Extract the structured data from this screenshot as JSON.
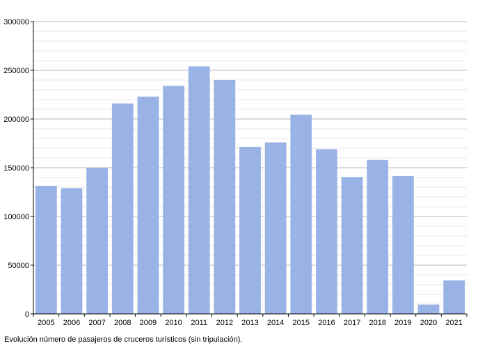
{
  "chart_data": {
    "type": "bar",
    "categories": [
      "2005",
      "2006",
      "2007",
      "2008",
      "2009",
      "2010",
      "2011",
      "2012",
      "2013",
      "2014",
      "2015",
      "2016",
      "2017",
      "2018",
      "2019",
      "2020",
      "2021"
    ],
    "series": [
      {
        "values": [
          131500,
          129000,
          150000,
          216000,
          223000,
          234000,
          254000,
          240000,
          171500,
          176000,
          204500,
          169000,
          140500,
          158000,
          141500,
          9500,
          34500
        ]
      }
    ],
    "ylim": [
      0,
      300000
    ],
    "yticks": [
      "0",
      "50000",
      "100000",
      "150000",
      "200000",
      "250000",
      "300000"
    ],
    "ytick_values": [
      0,
      50000,
      100000,
      150000,
      200000,
      250000,
      300000
    ],
    "grid": true,
    "minor_grid_step": 10000,
    "legend": "none",
    "caption": "Evolución número de pasajeros de cruceros turísticos (sin tripulación).",
    "colors": {
      "bar": "#9ab3e6",
      "major_grid": "#b8b8b8",
      "minor_grid": "#e6e6e6",
      "axis": "#000000"
    }
  }
}
